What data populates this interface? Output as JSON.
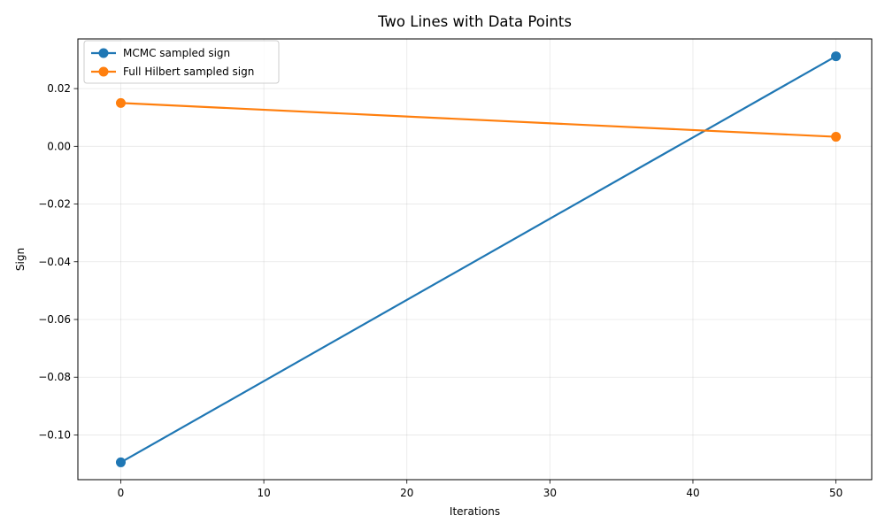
{
  "chart_data": {
    "type": "line",
    "title": "Two Lines with Data Points",
    "xlabel": "Iterations",
    "ylabel": "Sign",
    "xlim": [
      -3,
      52.5
    ],
    "ylim": [
      -0.1155,
      0.0372
    ],
    "xticks": [
      0,
      10,
      20,
      30,
      40,
      50
    ],
    "xtick_labels": [
      "0",
      "10",
      "20",
      "30",
      "40",
      "50"
    ],
    "yticks": [
      -0.1,
      -0.08,
      -0.06,
      -0.04,
      -0.02,
      0.0,
      0.02
    ],
    "ytick_labels": [
      "−0.10",
      "−0.08",
      "−0.06",
      "−0.04",
      "−0.02",
      "0.00",
      "0.02"
    ],
    "grid": true,
    "legend_position": "top-left",
    "series": [
      {
        "name": "MCMC sampled sign",
        "color": "#1f77b4",
        "x": [
          0,
          50
        ],
        "y": [
          -0.1095,
          0.0312
        ]
      },
      {
        "name": "Full Hilbert sampled sign",
        "color": "#ff7f0e",
        "x": [
          0,
          50
        ],
        "y": [
          0.015,
          0.0033
        ]
      }
    ]
  }
}
